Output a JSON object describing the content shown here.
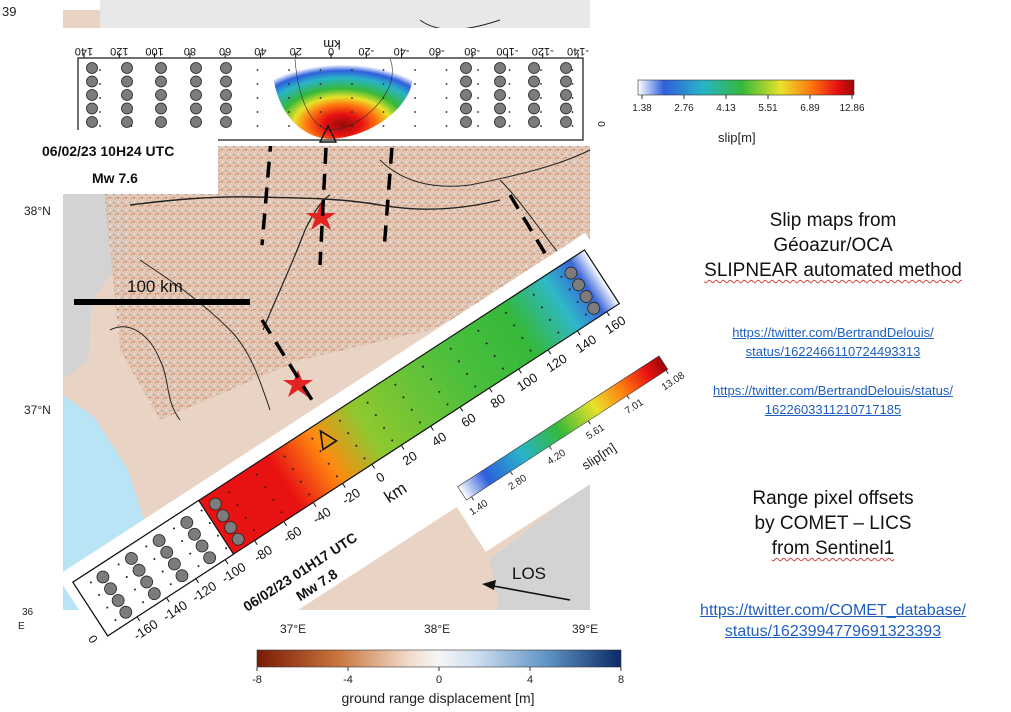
{
  "page_number": "39",
  "map": {
    "lat_labels": [
      "38°N",
      "37°N",
      "36"
    ],
    "lon_labels": [
      "37°E",
      "38°E",
      "39°E",
      "E"
    ],
    "scale_bar_label": "100 km",
    "los_label": "LOS"
  },
  "upper_slip_map": {
    "x_ticks": [
      "140",
      "120",
      "100",
      "80",
      "60",
      "40",
      "20",
      "0",
      "-20",
      "-40",
      "-60",
      "-80",
      "-100",
      "-120",
      "-140"
    ],
    "x_unit": "km",
    "y_tick": "0",
    "event_date": "06/02/23 10H24 UTC",
    "magnitude": "Mw 7.6",
    "colorbar": {
      "ticks": [
        "1.38",
        "2.76",
        "4.13",
        "5.51",
        "6.89",
        "12.86"
      ],
      "label": "slip[m]"
    }
  },
  "lower_slip_map": {
    "x_ticks": [
      "-160",
      "-140",
      "-120",
      "-100",
      "-80",
      "-60",
      "-40",
      "-20",
      "0",
      "20",
      "40",
      "60",
      "80",
      "100",
      "120",
      "140",
      "160"
    ],
    "x_unit": "km",
    "y_tick": "0",
    "event_date": "06/02/23 01H17 UTC",
    "magnitude": "Mw 7.8",
    "colorbar": {
      "ticks": [
        "1.40",
        "2.80",
        "4.20",
        "5.61",
        "7.01",
        "13.08"
      ],
      "label": "slip[m]"
    }
  },
  "displacement_colorbar": {
    "ticks": [
      "-8",
      "-4",
      "0",
      "4",
      "8"
    ],
    "label": "ground range displacement [m]",
    "colors": [
      "#7a1a05",
      "#c8743c",
      "#f2dccb",
      "#f7f5f4",
      "#cfdff0",
      "#5d92c4",
      "#0b2a66"
    ]
  },
  "slip_colors": [
    "#ffffff",
    "#2f5fdc",
    "#28b4c8",
    "#35b83a",
    "#e8e22a",
    "#ff7a10",
    "#e81212",
    "#9a0808"
  ],
  "notes": {
    "slip_title_lines": [
      "Slip maps from",
      "Géoazur/OCA",
      "SLIPNEAR automated method"
    ],
    "slip_link_1_lines": [
      "https://twitter.com/BertrandDelouis/",
      "status/1622466110724493313"
    ],
    "slip_link_2_lines": [
      "https://twitter.com/BertrandDelouis/status/",
      "1622603311210717185"
    ],
    "offset_title_lines": [
      "Range pixel offsets",
      "by COMET – LICS",
      "from Sentinel1"
    ],
    "offset_link_lines": [
      "https://twitter.com/COMET_database/",
      "status/1623994779691323393"
    ]
  }
}
